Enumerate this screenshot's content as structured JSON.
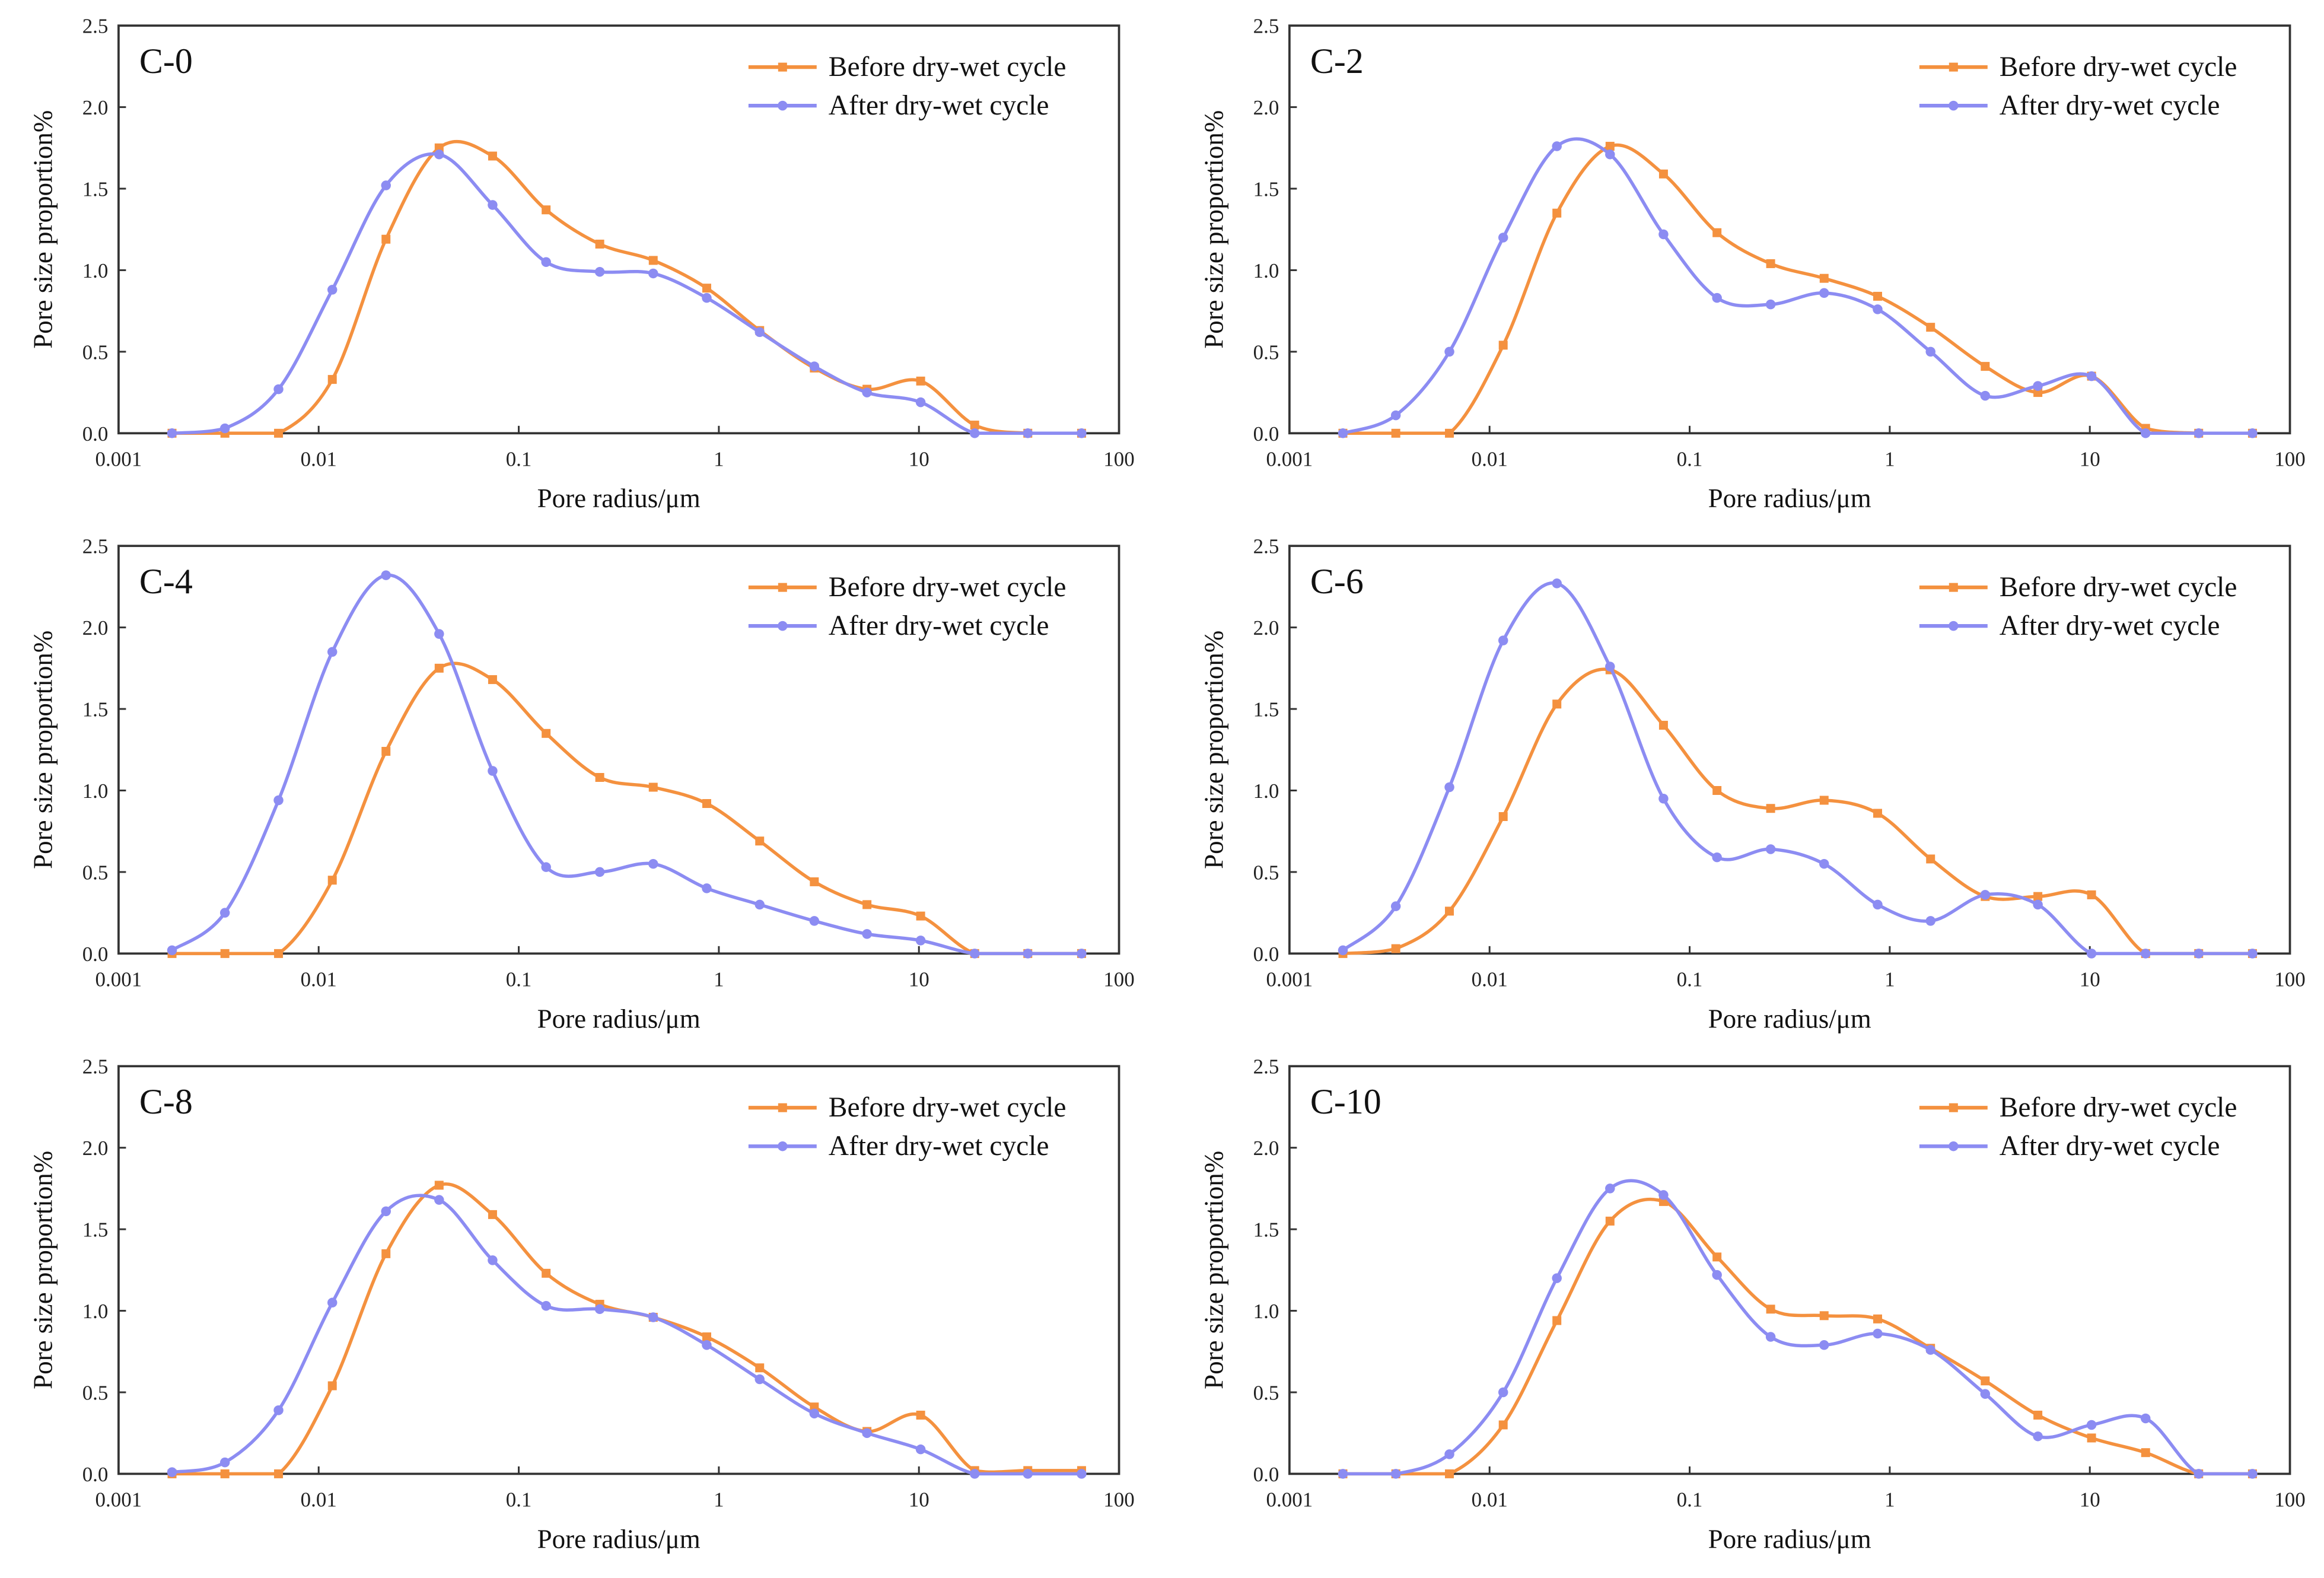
{
  "colors": {
    "before": "#F4913F",
    "after": "#8C8CF2",
    "axis": "#333333"
  },
  "chart_data": {
    "type": "line",
    "shared": {
      "xlabel": "Pore radius/μm",
      "ylabel": "Pore size proportion%",
      "xscale": "log",
      "xlim": [
        0.001,
        100
      ],
      "ylim": [
        0,
        2.5
      ],
      "xticks": [
        0.001,
        0.01,
        0.1,
        1,
        10,
        100
      ],
      "xtick_labels": [
        "0.001",
        "0.01",
        "0.1",
        "1",
        "10",
        "100"
      ],
      "yticks": [
        0,
        0.5,
        1.0,
        1.5,
        2.0,
        2.5
      ],
      "ytick_labels": [
        "0.0",
        "0.5",
        "1.0",
        "1.5",
        "2.0",
        "2.5"
      ],
      "legend_position": "top-right",
      "series_names": [
        "Before dry-wet cycle",
        "After dry-wet cycle"
      ],
      "x": [
        0.00185,
        0.0034,
        0.0063,
        0.0117,
        0.0217,
        0.04,
        0.074,
        0.137,
        0.254,
        0.47,
        0.87,
        1.6,
        3.0,
        5.5,
        10.2,
        19,
        35,
        65
      ]
    },
    "panels": [
      {
        "title": "C-0",
        "series": [
          {
            "name": "Before dry-wet cycle",
            "values": [
              0,
              0,
              0,
              0.33,
              1.19,
              1.75,
              1.7,
              1.37,
              1.16,
              1.06,
              0.89,
              0.63,
              0.4,
              0.27,
              0.32,
              0.05,
              0,
              0
            ]
          },
          {
            "name": "After dry-wet cycle",
            "values": [
              0,
              0.03,
              0.27,
              0.88,
              1.52,
              1.71,
              1.4,
              1.05,
              0.99,
              0.98,
              0.83,
              0.62,
              0.41,
              0.25,
              0.19,
              0,
              0,
              0
            ]
          }
        ]
      },
      {
        "title": "C-2",
        "series": [
          {
            "name": "Before dry-wet cycle",
            "values": [
              0,
              0,
              0,
              0.54,
              1.35,
              1.76,
              1.59,
              1.23,
              1.04,
              0.95,
              0.84,
              0.65,
              0.41,
              0.25,
              0.35,
              0.03,
              0,
              0
            ]
          },
          {
            "name": "After dry-wet cycle",
            "values": [
              0,
              0.11,
              0.5,
              1.2,
              1.76,
              1.71,
              1.22,
              0.83,
              0.79,
              0.86,
              0.76,
              0.5,
              0.23,
              0.29,
              0.35,
              0,
              0,
              0
            ]
          }
        ]
      },
      {
        "title": "C-4",
        "series": [
          {
            "name": "Before dry-wet cycle",
            "values": [
              0,
              0,
              0,
              0.45,
              1.24,
              1.75,
              1.68,
              1.35,
              1.08,
              1.02,
              0.92,
              0.69,
              0.44,
              0.3,
              0.23,
              0,
              0,
              0
            ]
          },
          {
            "name": "After dry-wet cycle",
            "values": [
              0.02,
              0.25,
              0.94,
              1.85,
              2.32,
              1.96,
              1.12,
              0.53,
              0.5,
              0.55,
              0.4,
              0.3,
              0.2,
              0.12,
              0.08,
              0,
              0,
              0
            ]
          }
        ]
      },
      {
        "title": "C-6",
        "series": [
          {
            "name": "Before dry-wet cycle",
            "values": [
              0,
              0.03,
              0.26,
              0.84,
              1.53,
              1.74,
              1.4,
              1.0,
              0.89,
              0.94,
              0.86,
              0.58,
              0.35,
              0.35,
              0.36,
              0,
              0,
              0
            ]
          },
          {
            "name": "After dry-wet cycle",
            "values": [
              0.02,
              0.29,
              1.02,
              1.92,
              2.27,
              1.76,
              0.95,
              0.59,
              0.64,
              0.55,
              0.3,
              0.2,
              0.36,
              0.3,
              0,
              0,
              0,
              0
            ]
          }
        ]
      },
      {
        "title": "C-8",
        "series": [
          {
            "name": "Before dry-wet cycle",
            "values": [
              0,
              0,
              0,
              0.54,
              1.35,
              1.77,
              1.59,
              1.23,
              1.04,
              0.96,
              0.84,
              0.65,
              0.41,
              0.26,
              0.36,
              0.02,
              0.02,
              0.02
            ]
          },
          {
            "name": "After dry-wet cycle",
            "values": [
              0.01,
              0.07,
              0.39,
              1.05,
              1.61,
              1.68,
              1.31,
              1.03,
              1.01,
              0.96,
              0.79,
              0.58,
              0.37,
              0.25,
              0.15,
              0,
              0,
              0
            ]
          }
        ]
      },
      {
        "title": "C-10",
        "series": [
          {
            "name": "Before dry-wet cycle",
            "values": [
              0,
              0,
              0,
              0.3,
              0.94,
              1.55,
              1.67,
              1.33,
              1.01,
              0.97,
              0.95,
              0.77,
              0.57,
              0.36,
              0.22,
              0.13,
              0,
              0
            ]
          },
          {
            "name": "After dry-wet cycle",
            "values": [
              0,
              0,
              0.12,
              0.5,
              1.2,
              1.75,
              1.71,
              1.22,
              0.84,
              0.79,
              0.86,
              0.76,
              0.49,
              0.23,
              0.3,
              0.34,
              0,
              0
            ]
          }
        ]
      }
    ]
  }
}
